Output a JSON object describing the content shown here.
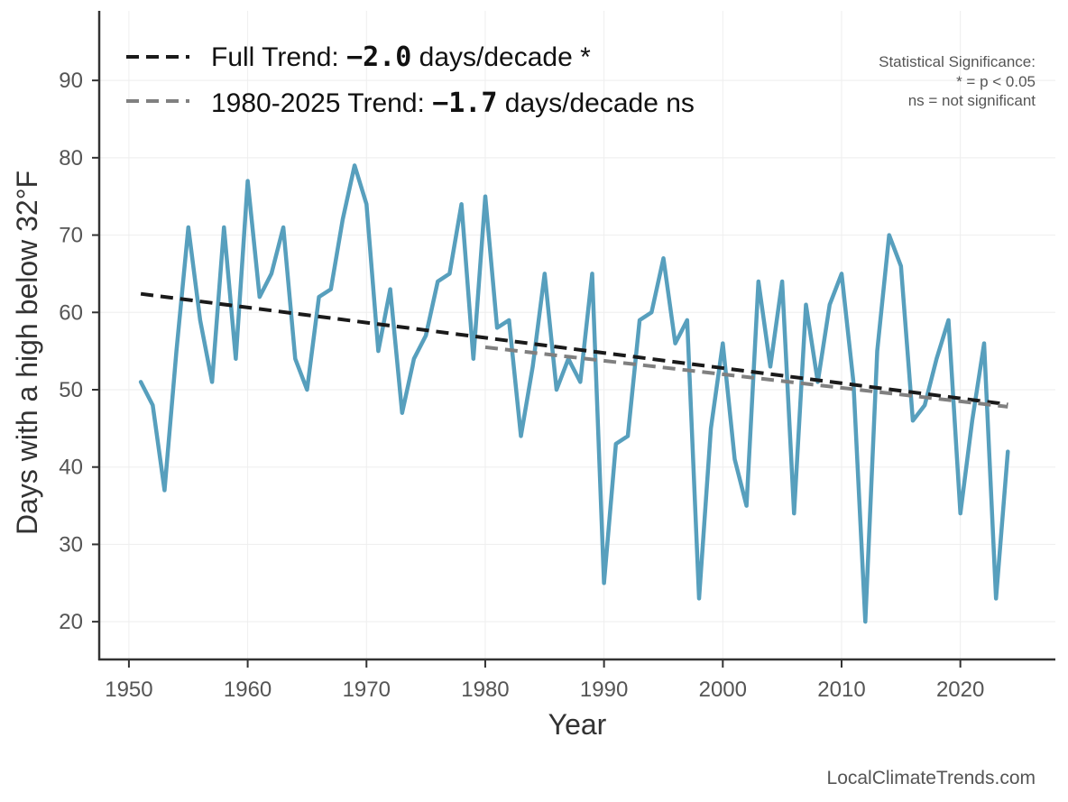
{
  "chart_data": {
    "type": "line",
    "xlabel": "Year",
    "ylabel": "Days with a high below 32°F",
    "xlim": [
      1947.5,
      2028
    ],
    "ylim": [
      15,
      99
    ],
    "xticks": [
      1950,
      1960,
      1970,
      1980,
      1990,
      2000,
      2010,
      2020
    ],
    "yticks": [
      20,
      30,
      40,
      50,
      60,
      70,
      80,
      90
    ],
    "grid": true,
    "legend_position": "top-left",
    "series": [
      {
        "color": "#579fbd",
        "x": [
          1951,
          1952,
          1953,
          1954,
          1955,
          1956,
          1957,
          1958,
          1959,
          1960,
          1961,
          1962,
          1963,
          1964,
          1965,
          1966,
          1967,
          1968,
          1969,
          1970,
          1971,
          1972,
          1973,
          1974,
          1975,
          1976,
          1977,
          1978,
          1979,
          1980,
          1981,
          1982,
          1983,
          1984,
          1985,
          1986,
          1987,
          1988,
          1989,
          1990,
          1991,
          1992,
          1993,
          1994,
          1995,
          1996,
          1997,
          1998,
          1999,
          2000,
          2001,
          2002,
          2003,
          2004,
          2005,
          2006,
          2007,
          2008,
          2009,
          2010,
          2011,
          2012,
          2013,
          2014,
          2015,
          2016,
          2017,
          2018,
          2019,
          2020,
          2021,
          2022,
          2023,
          2024
        ],
        "y": [
          51,
          48,
          37,
          55,
          71,
          59,
          51,
          71,
          54,
          77,
          62,
          65,
          71,
          54,
          50,
          62,
          63,
          72,
          79,
          74,
          55,
          63,
          47,
          54,
          57,
          64,
          65,
          74,
          54,
          75,
          58,
          59,
          44,
          53,
          65,
          50,
          54,
          51,
          65,
          25,
          43,
          44,
          59,
          60,
          67,
          56,
          59,
          23,
          45,
          56,
          41,
          35,
          64,
          53,
          64,
          34,
          61,
          51,
          61,
          65,
          51,
          20,
          55,
          70,
          66,
          46,
          48,
          54,
          59,
          34,
          46,
          56,
          23,
          42
        ]
      },
      {
        "name": "Full Trend",
        "color": "#1a1a1a",
        "dashed": true,
        "x": [
          1951,
          2024
        ],
        "y": [
          62.4,
          48.1
        ]
      },
      {
        "name": "1980-2025 Trend",
        "color": "#808080",
        "dashed": true,
        "x": [
          1980,
          2024
        ],
        "y": [
          55.5,
          47.8
        ]
      }
    ]
  },
  "legend": {
    "full": {
      "prefix": "Full Trend: ",
      "value": "−2.0",
      "suffix": " days/decade *"
    },
    "recent": {
      "prefix": "1980-2025 Trend: ",
      "value": "−1.7",
      "suffix": " days/decade ns"
    }
  },
  "significance": {
    "line1": "Statistical Significance:",
    "line2": "* = p < 0.05",
    "line3": "ns = not significant"
  },
  "credit": "LocalClimateTrends.com"
}
